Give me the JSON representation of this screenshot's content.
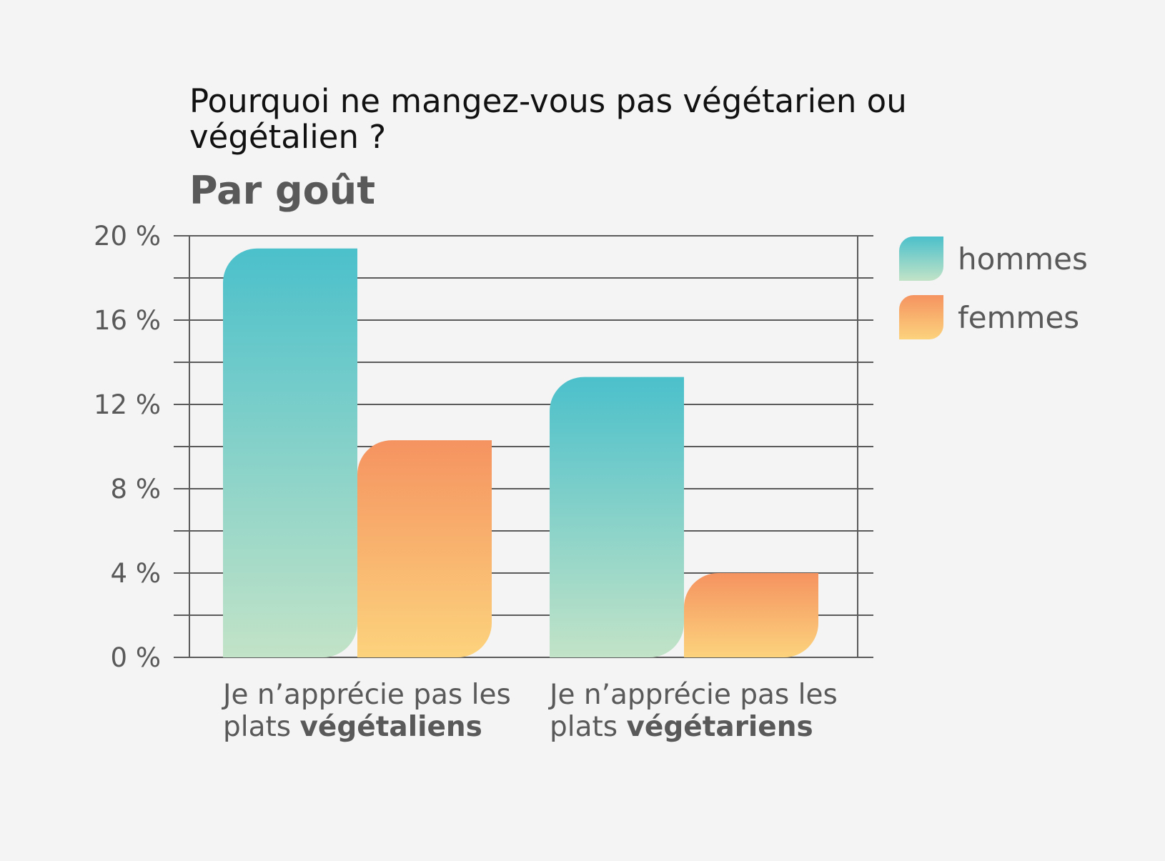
{
  "chart_data": {
    "type": "bar",
    "title_lines": [
      "Pourquoi ne mangez-vous pas végétarien ou",
      "végétalien ?"
    ],
    "subtitle": "Par goût",
    "categories": [
      {
        "line1": "Je n’apprécie pas les",
        "line2_prefix": "plats ",
        "line2_bold": "végétaliens"
      },
      {
        "line1": "Je n’apprécie pas les",
        "line2_prefix": "plats ",
        "line2_bold": "végétariens"
      }
    ],
    "series": [
      {
        "name": "hommes",
        "values": [
          19.4,
          13.3
        ],
        "color_top": "#4bc0cb",
        "color_bottom": "#c2e3c7"
      },
      {
        "name": "femmes",
        "values": [
          10.3,
          4.0
        ],
        "color_top": "#f59360",
        "color_bottom": "#fcd37d"
      }
    ],
    "y_ticks": [
      "0 %",
      "4 %",
      "8 %",
      "12 %",
      "16 %",
      "20 %"
    ],
    "ylim": [
      0,
      20
    ],
    "y_unit": "%",
    "grid": true,
    "legend_position": "right",
    "colors": {
      "background": "#f4f4f4",
      "grid": "#5a5a5a",
      "text": "#595959",
      "title": "#111111"
    }
  }
}
